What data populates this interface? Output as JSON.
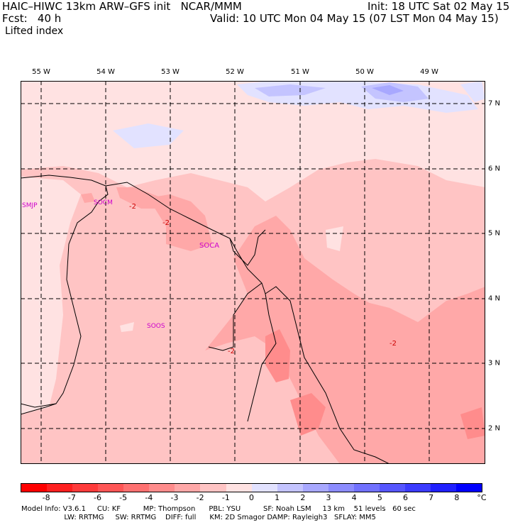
{
  "header": {
    "title": "HAIC–HIWC 13km ARW–GFS init   NCAR/MMM",
    "init": "Init: 18 UTC Sat 02 May 15",
    "fcst": "Fcst:   40 h",
    "valid": "Valid: 10 UTC Mon 04 May 15 (07 LST Mon 04 May 15)",
    "field": "Lifted index"
  },
  "map": {
    "lon_labels": [
      "55 W",
      "54 W",
      "53 W",
      "52 W",
      "51 W",
      "50 W",
      "49 W"
    ],
    "lat_labels": [
      "7 N",
      "6 N",
      "5 N",
      "4 N",
      "3 N",
      "2 N"
    ],
    "stations": [
      "SMJP",
      "SOCM",
      "SOCA",
      "SOOS"
    ],
    "contour_labels": [
      "-2",
      "-2",
      "-2",
      "-2"
    ]
  },
  "colorbar": {
    "ticks": [
      "-8",
      "-7",
      "-6",
      "-5",
      "-4",
      "-3",
      "-2",
      "-1",
      "0",
      "1",
      "2",
      "3",
      "4",
      "5",
      "6",
      "7",
      "8"
    ],
    "unit": "°C",
    "colors": [
      "#ff0000",
      "#ff2020",
      "#ff3b3b",
      "#ff5656",
      "#ff7171",
      "#ff8c8c",
      "#ffa8a8",
      "#ffc4c4",
      "#ffe2e2",
      "#e2e2ff",
      "#c4c4ff",
      "#a8a8ff",
      "#8c8cff",
      "#7171ff",
      "#5656ff",
      "#3b3bff",
      "#2020ff",
      "#0000ff"
    ]
  },
  "footer": {
    "line1": "Model Info: V3.6.1     CU: KF          MP: Thompson      PBL: YSU          SF: Noah LSM     13 km    51 levels   60 sec",
    "line2": "                   LW: RRTMG     SW: RRTMG    DIFF: full      KM: 2D Smagor DAMP: Rayleigh3   SFLAY: MM5"
  }
}
